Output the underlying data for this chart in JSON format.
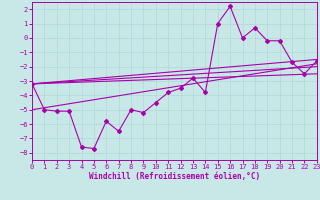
{
  "xlabel": "Windchill (Refroidissement éolien,°C)",
  "background_color": "#c8e8e8",
  "grid_color": "#b0d8d8",
  "line_color": "#aa00aa",
  "xlim": [
    0,
    23
  ],
  "ylim": [
    -8.5,
    2.5
  ],
  "yticks": [
    2,
    1,
    0,
    -1,
    -2,
    -3,
    -4,
    -5,
    -6,
    -7,
    -8
  ],
  "xticks": [
    0,
    1,
    2,
    3,
    4,
    5,
    6,
    7,
    8,
    9,
    10,
    11,
    12,
    13,
    14,
    15,
    16,
    17,
    18,
    19,
    20,
    21,
    22,
    23
  ],
  "series": [
    [
      0,
      -3.2
    ],
    [
      1,
      -5.0
    ],
    [
      2,
      -5.1
    ],
    [
      3,
      -5.1
    ],
    [
      4,
      -7.6
    ],
    [
      5,
      -7.7
    ],
    [
      6,
      -5.8
    ],
    [
      7,
      -6.5
    ],
    [
      8,
      -5.0
    ],
    [
      9,
      -5.2
    ],
    [
      10,
      -4.5
    ],
    [
      11,
      -3.8
    ],
    [
      12,
      -3.5
    ],
    [
      13,
      -2.8
    ],
    [
      14,
      -3.8
    ],
    [
      15,
      1.0
    ],
    [
      16,
      2.2
    ],
    [
      17,
      0.0
    ],
    [
      18,
      0.7
    ],
    [
      19,
      -0.2
    ],
    [
      20,
      -0.2
    ],
    [
      21,
      -1.7
    ],
    [
      22,
      -2.5
    ],
    [
      23,
      -1.6
    ]
  ],
  "trend_lines": [
    [
      [
        0,
        -3.2
      ],
      [
        23,
        -1.5
      ]
    ],
    [
      [
        0,
        -3.2
      ],
      [
        23,
        -2.0
      ]
    ],
    [
      [
        0,
        -3.2
      ],
      [
        23,
        -2.5
      ]
    ],
    [
      [
        0,
        -5.0
      ],
      [
        23,
        -1.8
      ]
    ]
  ]
}
